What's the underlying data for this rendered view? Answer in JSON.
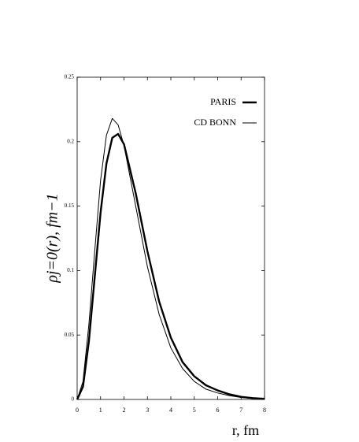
{
  "chart_data": {
    "type": "line",
    "ylabel": "ρj=0(r),  fm−1",
    "xlabel": "r, fm",
    "x": [
      0,
      0.25,
      0.5,
      0.75,
      1,
      1.25,
      1.5,
      1.75,
      2,
      2.5,
      3,
      3.5,
      4,
      4.5,
      5,
      5.5,
      6,
      6.5,
      7,
      7.5,
      8
    ],
    "series": [
      {
        "name": "PARIS",
        "color": "#000000",
        "values": [
          0,
          0.01,
          0.045,
          0.095,
          0.145,
          0.183,
          0.203,
          0.206,
          0.198,
          0.16,
          0.115,
          0.076,
          0.048,
          0.029,
          0.018,
          0.011,
          0.007,
          0.004,
          0.002,
          0.001,
          0.0005
        ]
      },
      {
        "name": "CD BONN",
        "color": "#000000",
        "values": [
          0,
          0.014,
          0.058,
          0.115,
          0.17,
          0.205,
          0.218,
          0.213,
          0.197,
          0.15,
          0.103,
          0.066,
          0.04,
          0.024,
          0.014,
          0.008,
          0.005,
          0.003,
          0.0015,
          0.0008,
          0.0003
        ]
      }
    ],
    "xlim": [
      0,
      8
    ],
    "xticks": [
      0,
      1,
      2,
      3,
      4,
      5,
      6,
      7,
      8
    ],
    "ylim": [
      0,
      0.25
    ],
    "yticks": [
      0,
      0.05,
      0.1,
      0.15,
      0.2,
      0.25
    ],
    "legend": "upper-right",
    "grid": false
  }
}
